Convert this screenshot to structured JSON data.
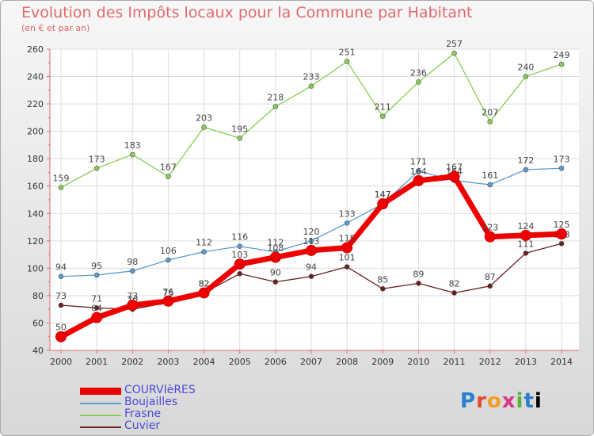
{
  "chart_data": {
    "type": "line",
    "title": "Evolution des Impôts locaux pour la Commune par Habitant",
    "subtitle": "(en € et par an)",
    "x": [
      "2000",
      "2001",
      "2002",
      "2003",
      "2004",
      "2005",
      "2006",
      "2007",
      "2008",
      "2009",
      "2010",
      "2011",
      "2012",
      "2013",
      "2014"
    ],
    "ylim": [
      40,
      260
    ],
    "yticks": [
      40,
      60,
      80,
      100,
      120,
      140,
      160,
      180,
      200,
      220,
      240,
      260
    ],
    "grid": true,
    "series": [
      {
        "name": "Frasne",
        "color": "#88cc55",
        "values": [
          159,
          173,
          183,
          167,
          203,
          195,
          218,
          233,
          251,
          211,
          236,
          257,
          207,
          240,
          249
        ]
      },
      {
        "name": "Boujailles",
        "color": "#5b9bcf",
        "values": [
          94,
          95,
          98,
          106,
          112,
          116,
          112,
          120,
          133,
          147,
          171,
          164,
          161,
          172,
          173
        ]
      },
      {
        "name": "Cuvier",
        "color": "#6b1f1f",
        "values": [
          73,
          71,
          70,
          75,
          82,
          96,
          90,
          94,
          101,
          85,
          89,
          82,
          87,
          111,
          118
        ]
      },
      {
        "name": "COURVIèRES",
        "color": "#ee0000",
        "values": [
          50,
          64,
          73,
          76,
          82,
          103,
          108,
          113,
          115,
          147,
          164,
          167,
          123,
          124,
          125
        ]
      }
    ],
    "legend": [
      "COURVIèRES",
      "Boujailles",
      "Frasne",
      "Cuvier"
    ]
  },
  "logo": {
    "letters": [
      "P",
      "r",
      "o",
      "x",
      "i",
      "t",
      "i"
    ]
  }
}
